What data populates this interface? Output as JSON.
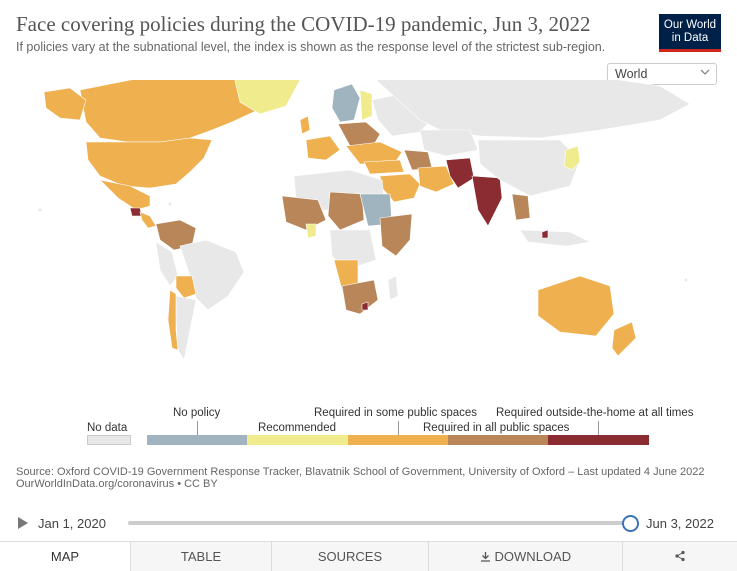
{
  "header": {
    "title": "Face covering policies during the COVID-19 pandemic, Jun 3, 2022",
    "subtitle": "If policies vary at the subnational level, the index is shown as the response level of the strictest sub-region.",
    "logo_line1": "Our World",
    "logo_line2": "in Data"
  },
  "region_select": {
    "value": "World"
  },
  "colors": {
    "no_data": "#e8e8e8",
    "no_policy": "#a0b4c0",
    "recommended": "#f0eb8c",
    "required_some": "#efb04f",
    "required_all": "#b9865a",
    "required_outside": "#8a2c31",
    "ocean": "#ffffff"
  },
  "legend": {
    "no_data": "No data",
    "items": [
      "No policy",
      "Recommended",
      "Required in some public spaces",
      "Required in all public spaces",
      "Required outside-the-home at all times"
    ]
  },
  "source": {
    "line1": "Source: Oxford COVID-19 Government Response Tracker, Blavatnik School of Government, University of Oxford – Last updated 4 June 2022",
    "line2": "OurWorldInData.org/coronavirus • CC BY"
  },
  "timeline": {
    "start": "Jan 1, 2020",
    "end": "Jun 3, 2022",
    "position": 1.0
  },
  "tabs": [
    "Map",
    "Table",
    "Sources",
    "Download",
    "Share"
  ]
}
